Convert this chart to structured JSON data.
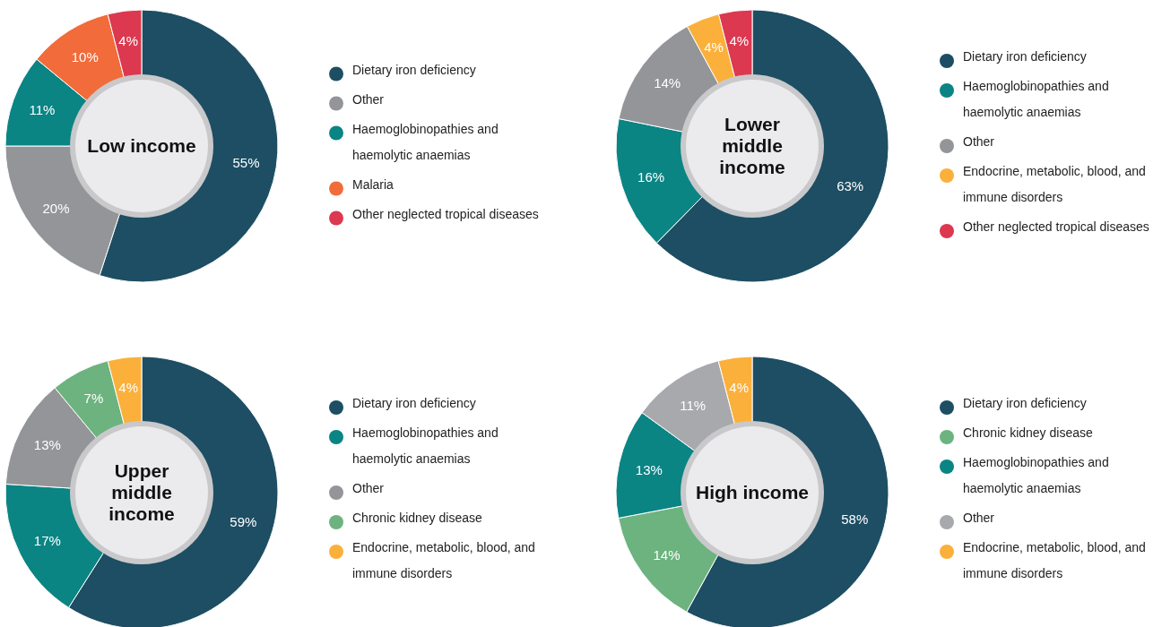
{
  "chart_data": [
    {
      "type": "donut",
      "title": "Low income",
      "legend": "right",
      "categories": [
        "Dietary iron deficiency",
        "Other",
        "Haemoglobinopathies and haemolytic anaemias",
        "Malaria",
        "Other neglected tropical diseases"
      ],
      "values": [
        55,
        20,
        11,
        10,
        4
      ],
      "value_labels": [
        "55%",
        "20%",
        "11%",
        "10%",
        "4%"
      ],
      "colors": [
        "#1d4e63",
        "#939598",
        "#0b8484",
        "#f26b3a",
        "#dc3850"
      ]
    },
    {
      "type": "donut",
      "title": "Lower middle income",
      "legend": "right",
      "categories": [
        "Dietary iron deficiency",
        "Haemoglobinopathies and haemolytic anaemias",
        "Other",
        "Endocrine, metabolic, blood, and immune disorders",
        "Other neglected tropical diseases"
      ],
      "values": [
        63,
        16,
        14,
        4,
        4
      ],
      "value_labels": [
        "63%",
        "16%",
        "14%",
        "4%",
        "4%"
      ],
      "colors": [
        "#1d4e63",
        "#0b8484",
        "#939598",
        "#fbb03b",
        "#dc3850"
      ]
    },
    {
      "type": "donut",
      "title": "Upper middle income",
      "legend": "right",
      "categories": [
        "Dietary iron deficiency",
        "Haemoglobinopathies and haemolytic anaemias",
        "Other",
        "Chronic kidney disease",
        "Endocrine, metabolic, blood, and immune disorders"
      ],
      "values": [
        59,
        17,
        13,
        7,
        4
      ],
      "value_labels": [
        "59%",
        "17%",
        "13%",
        "7%",
        "4%"
      ],
      "colors": [
        "#1d4e63",
        "#0b8484",
        "#939598",
        "#6db37f",
        "#fbb03b"
      ]
    },
    {
      "type": "donut",
      "title": "High income",
      "legend": "right",
      "categories": [
        "Dietary iron deficiency",
        "Chronic kidney disease",
        "Haemoglobinopathies and haemolytic anaemias",
        "Other",
        "Endocrine, metabolic, blood, and immune disorders"
      ],
      "values": [
        58,
        14,
        13,
        11,
        4
      ],
      "value_labels": [
        "58%",
        "14%",
        "13%",
        "11%",
        "4%"
      ],
      "colors": [
        "#1d4e63",
        "#6db37f",
        "#0b8484",
        "#a7a9ac",
        "#fbb03b"
      ]
    }
  ]
}
